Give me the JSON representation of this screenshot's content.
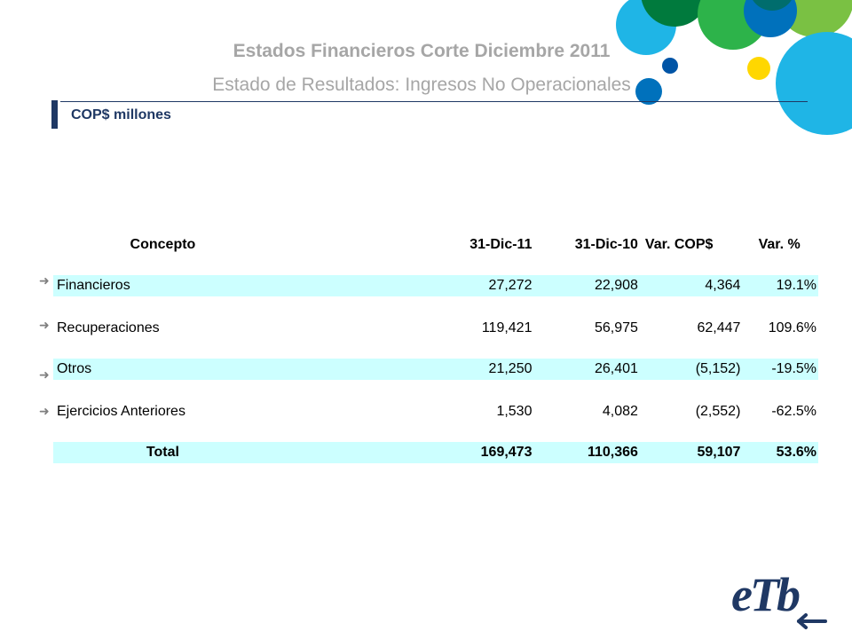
{
  "header": {
    "title": "Estados Financieros Corte Diciembre 2011",
    "subtitle": "Estado de Resultados: Ingresos No Operacionales",
    "units": "COP$ millones"
  },
  "table": {
    "columns": [
      "Concepto",
      "31-Dic-11",
      "31-Dic-10",
      "Var. COP$",
      "Var. %"
    ],
    "rows": [
      {
        "concepto": "Financieros",
        "dic11": "27,272",
        "dic10": "22,908",
        "var_cop": "4,364",
        "var_pct": "19.1%"
      },
      {
        "concepto": "Recuperaciones",
        "dic11": "119,421",
        "dic10": "56,975",
        "var_cop": "62,447",
        "var_pct": "109.6%"
      },
      {
        "concepto": "Otros",
        "dic11": "21,250",
        "dic10": "26,401",
        "var_cop": "(5,152)",
        "var_pct": "-19.5%"
      },
      {
        "concepto": "Ejercicios Anteriores",
        "dic11": "1,530",
        "dic10": "4,082",
        "var_cop": "(2,552)",
        "var_pct": "-62.5%"
      }
    ],
    "total": {
      "concepto": "Total",
      "dic11": "169,473",
      "dic10": "110,366",
      "var_cop": "59,107",
      "var_pct": "53.6%"
    }
  },
  "logo": {
    "text": "eTb"
  },
  "colors": {
    "title_gray": "#a6a6a6",
    "navy": "#1f3864",
    "row_shade": "#ccffff",
    "circle_light_blue": "#1fb5e6",
    "circle_dark_green": "#007a3d",
    "circle_green": "#2db34a",
    "circle_light_green": "#7ac143",
    "circle_blue": "#0071bc",
    "circle_yellow": "#ffd700"
  }
}
